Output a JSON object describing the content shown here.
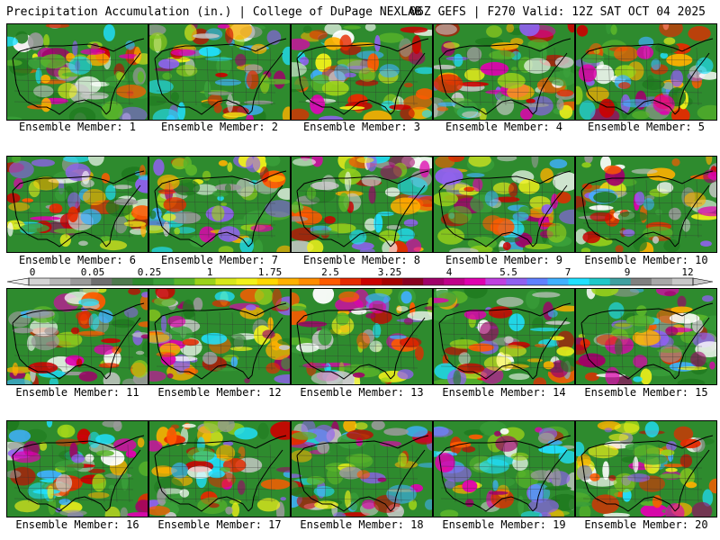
{
  "header": {
    "title": "Precipitation Accumulation (in.) | College of DuPage NEXLAB",
    "valid": "06Z GEFS | F270 Valid: 12Z SAT OCT 04 2025"
  },
  "colorbar": {
    "labels": [
      "0",
      "0.05",
      "0.25",
      "1",
      "1.75",
      "2.5",
      "3.25",
      "4",
      "5.5",
      "7",
      "9",
      "12"
    ],
    "colors": [
      "#d4d4d4",
      "#b8b8b8",
      "#9a9a9a",
      "#6f6f6f",
      "#4e7a4e",
      "#2e8b2e",
      "#3aa03a",
      "#5ab52a",
      "#9bd21a",
      "#d8e81a",
      "#f2f21a",
      "#ffd700",
      "#ffb000",
      "#ff8c00",
      "#ff5a00",
      "#e62a00",
      "#cc0000",
      "#a80000",
      "#8a0020",
      "#a0006a",
      "#c0008a",
      "#e000b0",
      "#c040e0",
      "#9060f0",
      "#6080ff",
      "#40b0ff",
      "#20e0ff",
      "#20c8c8",
      "#40a0a0",
      "#808080",
      "#a8a8a8",
      "#c8c8c8"
    ]
  },
  "panels": [
    {
      "label": "Ensemble Member: 1"
    },
    {
      "label": "Ensemble Member: 2"
    },
    {
      "label": "Ensemble Member: 3"
    },
    {
      "label": "Ensemble Member: 4"
    },
    {
      "label": "Ensemble Member: 5"
    },
    {
      "label": "Ensemble Member: 6"
    },
    {
      "label": "Ensemble Member: 7"
    },
    {
      "label": "Ensemble Member: 8"
    },
    {
      "label": "Ensemble Member: 9"
    },
    {
      "label": "Ensemble Member: 10"
    },
    {
      "label": "Ensemble Member: 11"
    },
    {
      "label": "Ensemble Member: 12"
    },
    {
      "label": "Ensemble Member: 13"
    },
    {
      "label": "Ensemble Member: 14"
    },
    {
      "label": "Ensemble Member: 15"
    },
    {
      "label": "Ensemble Member: 16"
    },
    {
      "label": "Ensemble Member: 17"
    },
    {
      "label": "Ensemble Member: 18"
    },
    {
      "label": "Ensemble Member: 19"
    },
    {
      "label": "Ensemble Member: 20"
    }
  ]
}
